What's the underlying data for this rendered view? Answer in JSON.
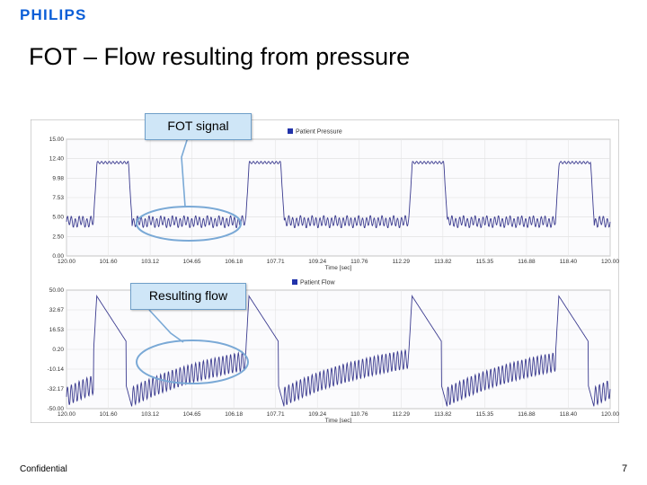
{
  "header": {
    "logo_text": "PHILIPS",
    "title": "FOT – Flow resulting from pressure"
  },
  "callouts": {
    "fot_signal": "FOT signal",
    "resulting_flow": "Resulting flow"
  },
  "footer": {
    "confidential": "Confidential",
    "page_number": "7"
  },
  "colors": {
    "brand": "#0b5ed7",
    "trace": "#3b3b8f",
    "callout_fill": "#cfe6f7",
    "highlight_ring": "#7aa9d6"
  },
  "chart_data": [
    {
      "type": "line",
      "series": [
        {
          "name": "Patient Pressure"
        }
      ],
      "xlabel": "Time [sec]",
      "x_ticks": [
        "120.00",
        "101.60",
        "103.12",
        "104.65",
        "106.18",
        "107.71",
        "109.24",
        "110.76",
        "112.29",
        "113.82",
        "115.35",
        "116.88",
        "118.40",
        "120.00"
      ],
      "y_ticks": [
        "15.00",
        "12.40",
        "9.98",
        "7.53",
        "5.00",
        "2.50",
        "0.00"
      ],
      "ylim": [
        0,
        15
      ],
      "grid": true,
      "legend": "top-center",
      "pressure_levels": {
        "low": 5.0,
        "high": 12.0
      },
      "fot_amplitude": 0.6
    },
    {
      "type": "line",
      "series": [
        {
          "name": "Patient Flow"
        }
      ],
      "xlabel": "Time [sec]",
      "x_ticks": [
        "120.00",
        "101.60",
        "103.12",
        "104.65",
        "106.18",
        "107.71",
        "109.24",
        "110.76",
        "112.29",
        "113.82",
        "115.35",
        "116.88",
        "118.40",
        "120.00"
      ],
      "y_ticks": [
        "50.00",
        "32.67",
        "16.53",
        "0.20",
        "-10.14",
        "-32.17",
        "-50.00"
      ],
      "ylim": [
        -50,
        50
      ],
      "grid": true,
      "legend": "top-center"
    }
  ]
}
